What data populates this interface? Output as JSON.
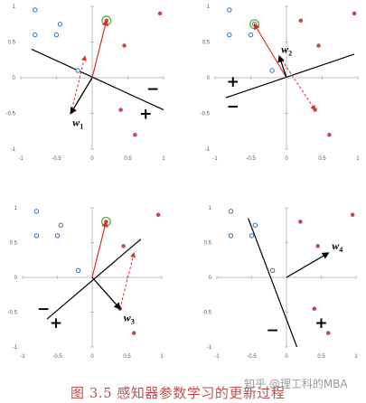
{
  "caption": "图 3.5   感知器参数学习的更新过程",
  "watermark": "知乎 @理工科的MBA",
  "colors": {
    "positive": "#c0504d",
    "negative": "#2e75b6",
    "highlight": "#70ad47",
    "weight": "#000000",
    "update": "#d9322e",
    "axis": "#bfbfbf",
    "line": "#000000"
  },
  "chart_data": [
    {
      "type": "scatter",
      "panel": "top-left",
      "xlim": [
        -1,
        1
      ],
      "ylim": [
        -1,
        1
      ],
      "x_ticks": [
        "-1",
        "-0.5",
        "0",
        "0.5",
        "1"
      ],
      "y_ticks": [
        "1",
        "0.5",
        "0",
        "-0.5",
        "-1"
      ],
      "points_positive": [
        [
          0.2,
          0.8
        ],
        [
          0.95,
          0.9
        ],
        [
          0.45,
          0.45
        ],
        [
          0.4,
          -0.45
        ],
        [
          0.6,
          -0.8
        ]
      ],
      "points_negative": [
        [
          -0.8,
          0.95
        ],
        [
          -0.8,
          0.6
        ],
        [
          -0.45,
          0.75
        ],
        [
          -0.5,
          0.6
        ],
        [
          -0.2,
          0.1
        ]
      ],
      "highlight_point": [
        0.2,
        0.8
      ],
      "boundary": [
        [
          -0.85,
          0.4
        ],
        [
          1.0,
          -0.45
        ]
      ],
      "weight_vector": [
        -0.3,
        -0.5
      ],
      "weight_label": "w1",
      "update_vector": [
        0.2,
        0.8
      ],
      "update_dashed": [
        [
          -0.3,
          -0.5
        ],
        [
          -0.1,
          0.3
        ]
      ],
      "signs": [
        {
          "text": "-",
          "at": [
            0.85,
            -0.15
          ]
        },
        {
          "text": "+",
          "at": [
            0.75,
            -0.5
          ]
        }
      ]
    },
    {
      "type": "scatter",
      "panel": "top-right",
      "xlim": [
        -1,
        1
      ],
      "ylim": [
        -1,
        1
      ],
      "x_ticks": [
        "-1",
        "-0.5",
        "0",
        "0.5",
        "1"
      ],
      "y_ticks": [
        "1",
        "0.5",
        "0",
        "-0.5",
        "-1"
      ],
      "points_positive": [
        [
          0.2,
          0.8
        ],
        [
          0.95,
          0.9
        ],
        [
          0.45,
          0.45
        ],
        [
          0.4,
          -0.45
        ],
        [
          0.6,
          -0.8
        ]
      ],
      "points_negative": [
        [
          -0.8,
          0.95
        ],
        [
          -0.8,
          0.6
        ],
        [
          -0.45,
          0.75
        ],
        [
          -0.5,
          0.6
        ],
        [
          -0.2,
          0.1
        ]
      ],
      "highlight_point": [
        -0.45,
        0.75
      ],
      "boundary": [
        [
          -0.85,
          -0.28
        ],
        [
          0.95,
          0.33
        ]
      ],
      "weight_vector": [
        -0.1,
        0.3
      ],
      "weight_label": "w2",
      "update_vector": [
        -0.45,
        0.75
      ],
      "update_dashed": [
        [
          -0.1,
          0.3
        ],
        [
          0.4,
          -0.45
        ]
      ],
      "signs": [
        {
          "text": "+",
          "at": [
            -0.75,
            -0.05
          ]
        },
        {
          "text": "-",
          "at": [
            -0.75,
            -0.4
          ]
        }
      ]
    },
    {
      "type": "scatter",
      "panel": "bottom-left",
      "xlim": [
        -1,
        1
      ],
      "ylim": [
        -1,
        1
      ],
      "x_ticks": [
        "-1",
        "-0.5",
        "0",
        "0.5",
        "1"
      ],
      "y_ticks": [
        "1",
        "0.5",
        "0",
        "-0.5",
        "-1"
      ],
      "points_positive": [
        [
          0.2,
          0.8
        ],
        [
          0.95,
          0.9
        ],
        [
          0.45,
          0.45
        ],
        [
          0.4,
          -0.45
        ],
        [
          0.6,
          -0.8
        ]
      ],
      "points_negative": [
        [
          -0.8,
          0.95
        ],
        [
          -0.8,
          0.6
        ],
        [
          -0.45,
          0.75
        ],
        [
          -0.5,
          0.6
        ],
        [
          -0.2,
          0.1
        ]
      ],
      "highlight_point": [
        0.2,
        0.8
      ],
      "boundary": [
        [
          -0.65,
          -0.6
        ],
        [
          0.7,
          0.55
        ]
      ],
      "weight_vector": [
        0.4,
        -0.45
      ],
      "weight_label": "w3",
      "update_vector": [
        0.2,
        0.8
      ],
      "update_dashed": [
        [
          0.4,
          -0.45
        ],
        [
          0.6,
          0.35
        ]
      ],
      "signs": [
        {
          "text": "-",
          "at": [
            -0.7,
            -0.45
          ]
        },
        {
          "text": "+",
          "at": [
            -0.52,
            -0.65
          ]
        }
      ]
    },
    {
      "type": "scatter",
      "panel": "bottom-right",
      "xlim": [
        -1,
        1
      ],
      "ylim": [
        -1,
        1
      ],
      "x_ticks": [
        "-1",
        "-0.5",
        "0",
        "0.5",
        "1"
      ],
      "y_ticks": [
        "1",
        "0.5",
        "0",
        "-0.5",
        "-1"
      ],
      "points_positive": [
        [
          0.2,
          0.8
        ],
        [
          0.95,
          0.9
        ],
        [
          0.45,
          0.45
        ],
        [
          0.4,
          -0.45
        ],
        [
          0.6,
          -0.8
        ]
      ],
      "points_negative": [
        [
          -0.8,
          0.95
        ],
        [
          -0.8,
          0.6
        ],
        [
          -0.45,
          0.75
        ],
        [
          -0.5,
          0.6
        ],
        [
          -0.2,
          0.1
        ]
      ],
      "highlight_point": null,
      "boundary": [
        [
          -0.55,
          0.85
        ],
        [
          0.15,
          -1.0
        ]
      ],
      "weight_vector": [
        0.6,
        0.35
      ],
      "weight_label": "w4",
      "update_vector": null,
      "update_dashed": null,
      "signs": [
        {
          "text": "-",
          "at": [
            -0.2,
            -0.75
          ]
        },
        {
          "text": "+",
          "at": [
            0.5,
            -0.65
          ]
        }
      ]
    }
  ]
}
